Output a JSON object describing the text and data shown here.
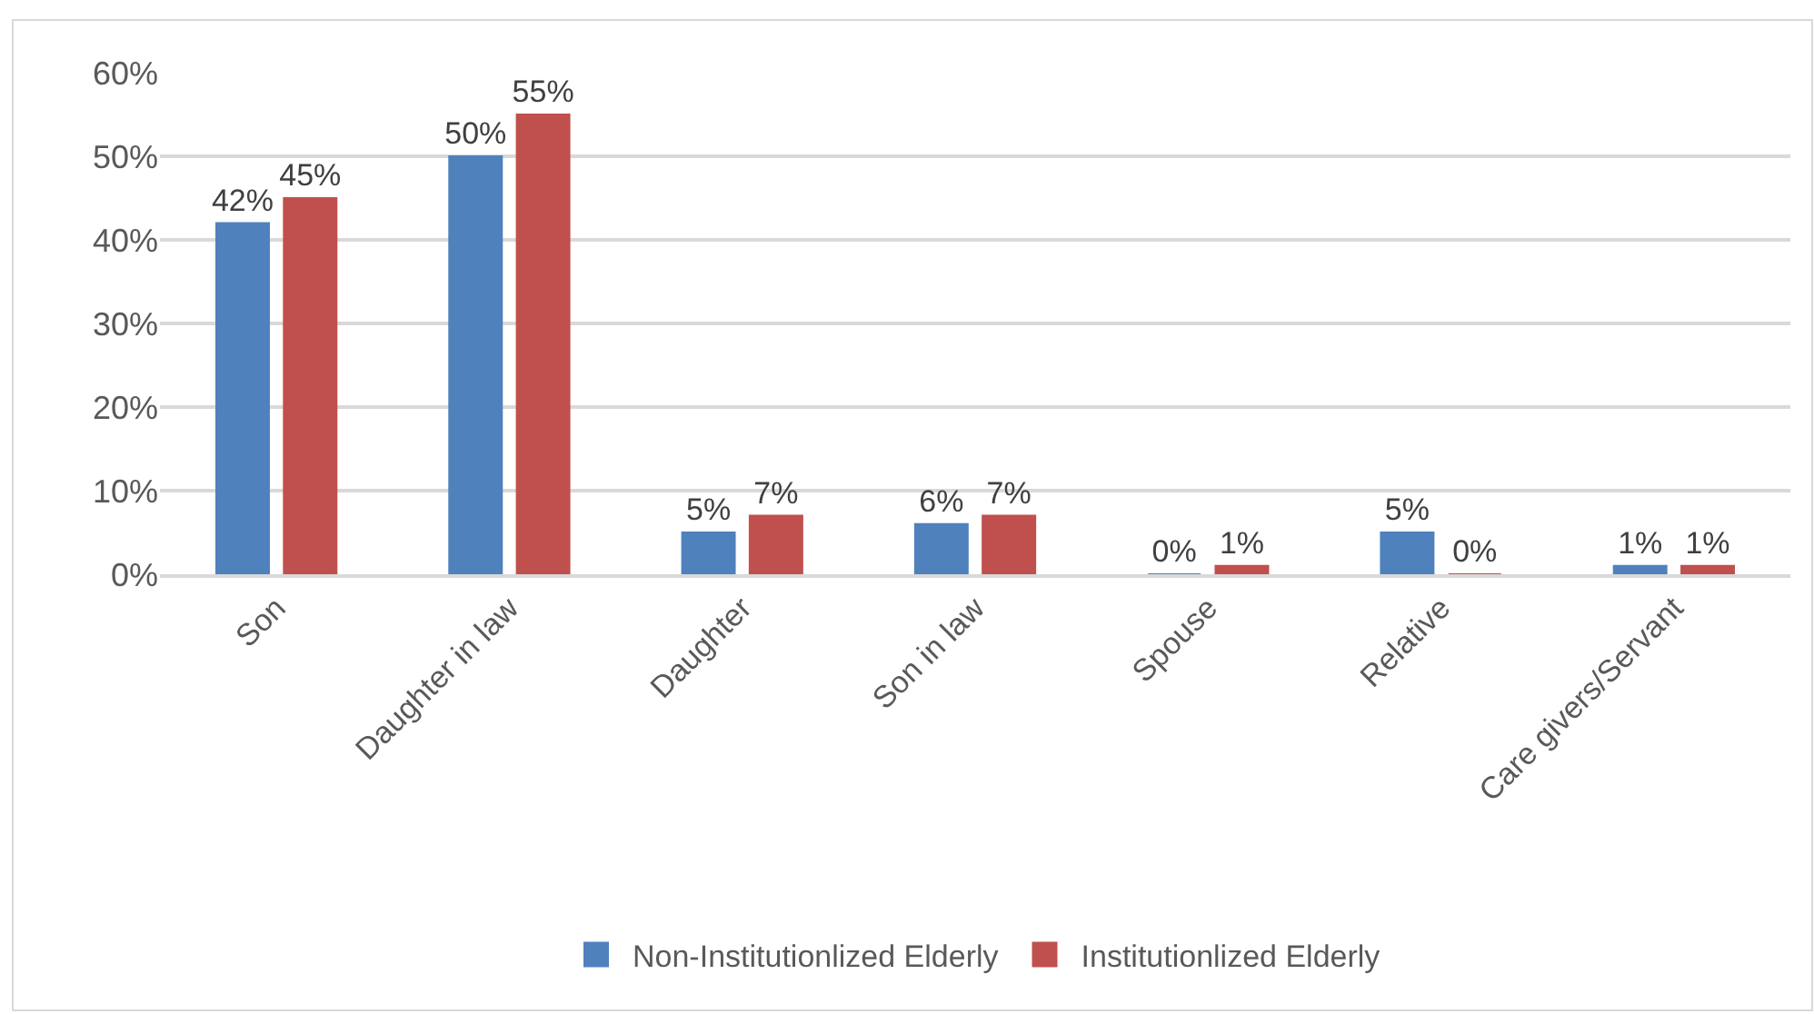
{
  "chart_data": {
    "type": "bar",
    "categories": [
      "Son",
      "Daughter in law",
      "Daughter",
      "Son in law",
      "Spouse",
      "Relative",
      "Care givers/Servant"
    ],
    "series": [
      {
        "name": "Non-Institutionlized Elderly",
        "color": "#4f81bd",
        "values": [
          42,
          50,
          5,
          6,
          0,
          5,
          1
        ],
        "value_labels": [
          "42%",
          "50%",
          "5%",
          "6%",
          "0%",
          "5%",
          "1%"
        ]
      },
      {
        "name": "Institutionlized Elderly",
        "color": "#c0504d",
        "values": [
          45,
          55,
          7,
          7,
          1,
          0,
          1
        ],
        "value_labels": [
          "45%",
          "55%",
          "7%",
          "7%",
          "1%",
          "0%",
          "1%"
        ]
      }
    ],
    "ylim": [
      0,
      60
    ],
    "yticks": [
      {
        "value": 0,
        "label": "0%"
      },
      {
        "value": 10,
        "label": "10%"
      },
      {
        "value": 20,
        "label": "20%"
      },
      {
        "value": 30,
        "label": "30%"
      },
      {
        "value": 40,
        "label": "40%"
      },
      {
        "value": 50,
        "label": "50%"
      },
      {
        "value": 60,
        "label": "60%"
      }
    ],
    "grid": "y",
    "legend": "bottom"
  }
}
